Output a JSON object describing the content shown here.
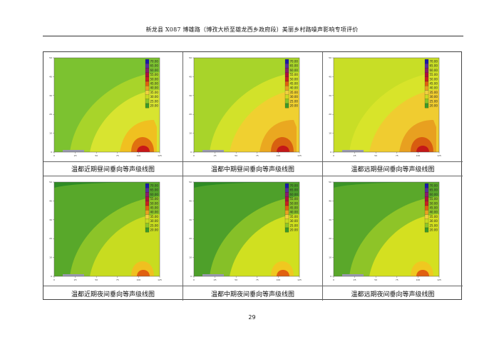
{
  "document": {
    "header": "新龙县 X087  博雄路（博孜大桥至雄龙西乡政府段）美丽乡村路噪声影响专项评价",
    "page_number": "29"
  },
  "legend": {
    "levels": [
      "70.00",
      "65.00",
      "60.00",
      "55.00",
      "50.00",
      "45.00",
      "40.00",
      "35.00",
      "30.00",
      "25.00",
      "20.00"
    ],
    "colors": [
      "#1a1aa8",
      "#5a2a9e",
      "#8a1a6e",
      "#b0103a",
      "#c82020",
      "#e06010",
      "#eaa020",
      "#f2d040",
      "#c8dc20",
      "#8cc828",
      "#3c9a28"
    ]
  },
  "x_ticks": [
    "0",
    "25",
    "50",
    "75",
    "100",
    "125"
  ],
  "y_ticks": [
    "0",
    "10",
    "20",
    "30",
    "40",
    "50"
  ],
  "panels": [
    {
      "caption": "温都近期昼间垂向等声级线图",
      "variant": "day-near"
    },
    {
      "caption": "温都中期昼间垂向等声级线图",
      "variant": "day-mid"
    },
    {
      "caption": "温都远期昼间垂向等声级线图",
      "variant": "day-far"
    },
    {
      "caption": "温都近期夜间垂向等声级线图",
      "variant": "night-near"
    },
    {
      "caption": "温都中期夜间垂向等声级线图",
      "variant": "night-mid"
    },
    {
      "caption": "温都远期夜间垂向等声级线图",
      "variant": "night-far"
    }
  ]
}
